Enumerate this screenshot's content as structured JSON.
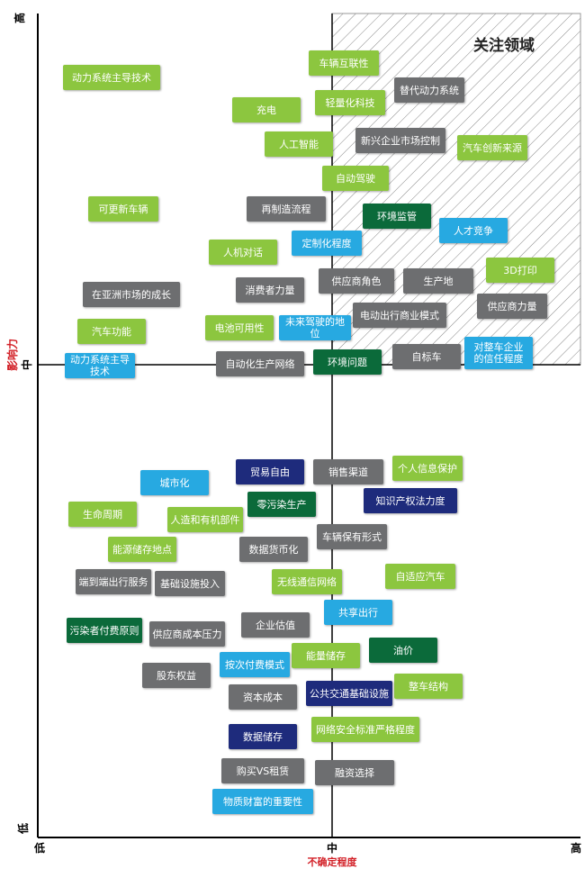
{
  "axes": {
    "y_title": "影响力",
    "y_high": "高",
    "y_mid": "中",
    "y_low": "低",
    "x_title": "不确定程度",
    "x_low": "低",
    "x_mid": "中",
    "x_high": "高"
  },
  "focus_area": "关注领域",
  "nodes": [
    {
      "label": "动力系统主导技术",
      "color": "#8cc63f"
    },
    {
      "label": "车辆互联性",
      "color": "#8cc63f"
    },
    {
      "label": "替代动力系统",
      "color": "#6d6e70"
    },
    {
      "label": "轻量化科技",
      "color": "#8cc63f"
    },
    {
      "label": "充电",
      "color": "#8cc63f"
    },
    {
      "label": "人工智能",
      "color": "#8cc63f"
    },
    {
      "label": "新兴企业市场控制",
      "color": "#6d6e70"
    },
    {
      "label": "汽车创新来源",
      "color": "#8cc63f"
    },
    {
      "label": "自动驾驶",
      "color": "#8cc63f"
    },
    {
      "label": "可更新车辆",
      "color": "#8cc63f"
    },
    {
      "label": "再制造流程",
      "color": "#6d6e70"
    },
    {
      "label": "环境监管",
      "color": "#0b6a3a"
    },
    {
      "label": "人才竞争",
      "color": "#27a9e1"
    },
    {
      "label": "人机对话",
      "color": "#8cc63f"
    },
    {
      "label": "定制化程度",
      "color": "#27a9e1"
    },
    {
      "label": "3D打印",
      "color": "#8cc63f"
    },
    {
      "label": "生产地",
      "color": "#6d6e70"
    },
    {
      "label": "供应商角色",
      "color": "#6d6e70"
    },
    {
      "label": "在亚洲市场的成长",
      "color": "#6d6e70"
    },
    {
      "label": "消费者力量",
      "color": "#6d6e70"
    },
    {
      "label": "供应商力量",
      "color": "#6d6e70"
    },
    {
      "label": "电动出行商业模式",
      "color": "#6d6e70"
    },
    {
      "label": "汽车功能",
      "color": "#8cc63f"
    },
    {
      "label": "电池可用性",
      "color": "#8cc63f"
    },
    {
      "label": "未来驾驶的地位",
      "color": "#27a9e1"
    },
    {
      "label": "动力系统主导技术",
      "color": "#27a9e1"
    },
    {
      "label": "自动化生产网络",
      "color": "#6d6e70"
    },
    {
      "label": "环境问题",
      "color": "#0b6a3a"
    },
    {
      "label": "自标车",
      "color": "#6d6e70"
    },
    {
      "label": "对整车企业\n的信任程度",
      "color": "#27a9e1"
    },
    {
      "label": "贸易自由",
      "color": "#1e2b7c"
    },
    {
      "label": "销售渠道",
      "color": "#6d6e70"
    },
    {
      "label": "个人信息保护",
      "color": "#8cc63f"
    },
    {
      "label": "城市化",
      "color": "#27a9e1"
    },
    {
      "label": "零污染生产",
      "color": "#0b6a3a"
    },
    {
      "label": "知识产权法力度",
      "color": "#1e2b7c"
    },
    {
      "label": "生命周期",
      "color": "#8cc63f"
    },
    {
      "label": "人造和有机部件",
      "color": "#8cc63f"
    },
    {
      "label": "车辆保有形式",
      "color": "#6d6e70"
    },
    {
      "label": "能源储存地点",
      "color": "#8cc63f"
    },
    {
      "label": "数据货币化",
      "color": "#6d6e70"
    },
    {
      "label": "端到端出行服务",
      "color": "#6d6e70"
    },
    {
      "label": "基础设施投入",
      "color": "#6d6e70"
    },
    {
      "label": "无线通信网络",
      "color": "#8cc63f"
    },
    {
      "label": "自适应汽车",
      "color": "#8cc63f"
    },
    {
      "label": "共享出行",
      "color": "#27a9e1"
    },
    {
      "label": "企业估值",
      "color": "#6d6e70"
    },
    {
      "label": "污染者付费原则",
      "color": "#0b6a3a"
    },
    {
      "label": "供应商成本压力",
      "color": "#6d6e70"
    },
    {
      "label": "油价",
      "color": "#0b6a3a"
    },
    {
      "label": "能量储存",
      "color": "#8cc63f"
    },
    {
      "label": "按次付费模式",
      "color": "#27a9e1"
    },
    {
      "label": "股东权益",
      "color": "#6d6e70"
    },
    {
      "label": "整车结构",
      "color": "#8cc63f"
    },
    {
      "label": "资本成本",
      "color": "#6d6e70"
    },
    {
      "label": "公共交通基础设施",
      "color": "#1e2b7c"
    },
    {
      "label": "数据储存",
      "color": "#1e2b7c"
    },
    {
      "label": "网络安全标准严格程度",
      "color": "#8cc63f"
    },
    {
      "label": "购买VS租赁",
      "color": "#6d6e70"
    },
    {
      "label": "融资选择",
      "color": "#6d6e70"
    },
    {
      "label": "物质财富的重要性",
      "color": "#27a9e1"
    }
  ]
}
